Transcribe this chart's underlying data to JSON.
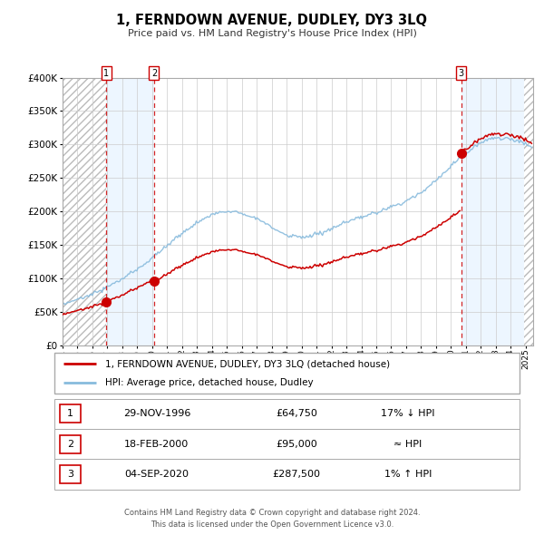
{
  "title": "1, FERNDOWN AVENUE, DUDLEY, DY3 3LQ",
  "subtitle": "Price paid vs. HM Land Registry's House Price Index (HPI)",
  "sale_years_float": [
    1996.9167,
    2000.125,
    2020.675
  ],
  "sale_prices": [
    64750,
    95000,
    287500
  ],
  "sale_labels": [
    "1",
    "2",
    "3"
  ],
  "legend_line1": "1, FERNDOWN AVENUE, DUDLEY, DY3 3LQ (detached house)",
  "legend_line2": "HPI: Average price, detached house, Dudley",
  "table_rows": [
    [
      "1",
      "29-NOV-1996",
      "£64,750",
      "17% ↓ HPI"
    ],
    [
      "2",
      "18-FEB-2000",
      "£95,000",
      "≈ HPI"
    ],
    [
      "3",
      "04-SEP-2020",
      "£287,500",
      "1% ↑ HPI"
    ]
  ],
  "footer1": "Contains HM Land Registry data © Crown copyright and database right 2024.",
  "footer2": "This data is licensed under the Open Government Licence v3.0.",
  "price_line_color": "#cc0000",
  "hpi_line_color": "#88bbdd",
  "sale_dot_color": "#cc0000",
  "dashed_line_color": "#cc0000",
  "shade_color": "#ddeeff",
  "grid_color": "#cccccc",
  "ylim": [
    0,
    400000
  ],
  "xlim_start": 1994.0,
  "xlim_end": 2025.5,
  "hpi_seed": 42,
  "noise_seed": 10
}
